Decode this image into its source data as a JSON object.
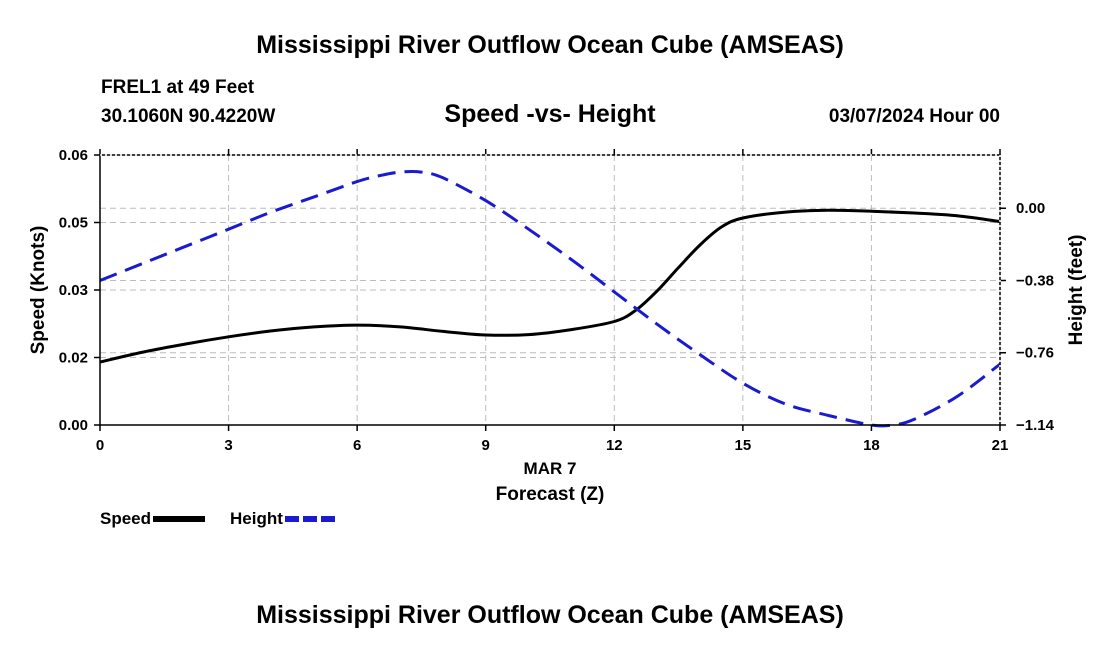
{
  "header": {
    "title": "Mississippi River Outflow Ocean Cube (AMSEAS)",
    "station_line1": "FREL1 at 49 Feet",
    "station_line2": "30.1060N  90.4220W",
    "subtitle": "Speed -vs- Height",
    "datetime": "03/07/2024 Hour 00"
  },
  "footer": {
    "title": "Mississippi River Outflow Ocean Cube (AMSEAS)"
  },
  "legend": [
    {
      "label": "Speed",
      "color": "#000000",
      "style": "solid"
    },
    {
      "label": "Height",
      "color": "#1a1ad0",
      "style": "dashed"
    }
  ],
  "chart_data": {
    "type": "line",
    "title": "Speed -vs- Height",
    "xlabel_line1": "MAR 7",
    "xlabel": "Forecast (Z)",
    "ylabel": "Speed (Knots)",
    "y2label": "Height (feet)",
    "xlim": [
      0,
      21
    ],
    "ylim": [
      0,
      0.06
    ],
    "y2lim": [
      -1.14,
      0.28
    ],
    "xticks": [
      0,
      3,
      6,
      9,
      12,
      15,
      18,
      21
    ],
    "xtick_labels": [
      "0",
      "3",
      "6",
      "9",
      "12",
      "15",
      "18",
      "21"
    ],
    "yticks": [
      0.0,
      0.02,
      0.03,
      0.05,
      0.06
    ],
    "ytick_labels": [
      "0.00",
      "0.02",
      "0.03",
      "0.05",
      "0.06"
    ],
    "ytick_positions": [
      0.0,
      0.015,
      0.03,
      0.045,
      0.06
    ],
    "y2ticks": [
      0.0,
      -0.38,
      -0.76,
      -1.14
    ],
    "y2tick_labels": [
      "0.00",
      "−0.38",
      "−0.76",
      "−1.14"
    ],
    "grid": true,
    "series": [
      {
        "name": "Speed",
        "axis": "left",
        "color": "#000000",
        "x": [
          0,
          1,
          2,
          3,
          4,
          5,
          6,
          7,
          8,
          9,
          10,
          11,
          12,
          12.5,
          13,
          13.5,
          14,
          14.5,
          15,
          16,
          17,
          18,
          19,
          20,
          21
        ],
        "y": [
          0.014,
          0.0162,
          0.018,
          0.0196,
          0.0209,
          0.0218,
          0.0222,
          0.0218,
          0.0208,
          0.02,
          0.0201,
          0.0212,
          0.023,
          0.0255,
          0.0298,
          0.035,
          0.04,
          0.044,
          0.046,
          0.0473,
          0.0477,
          0.0475,
          0.0471,
          0.0465,
          0.0452
        ]
      },
      {
        "name": "Height",
        "axis": "right",
        "color": "#1a1ad0",
        "x": [
          0,
          1,
          2,
          3,
          4,
          5,
          6,
          6.5,
          7,
          7.5,
          8,
          9,
          10,
          11,
          12,
          13,
          14,
          15,
          16,
          17,
          18,
          18.5,
          19,
          20,
          21
        ],
        "y": [
          -0.38,
          -0.29,
          -0.2,
          -0.11,
          -0.02,
          0.06,
          0.14,
          0.17,
          0.19,
          0.19,
          0.16,
          0.04,
          -0.11,
          -0.27,
          -0.44,
          -0.61,
          -0.77,
          -0.92,
          -1.03,
          -1.09,
          -1.14,
          -1.14,
          -1.11,
          -0.99,
          -0.82
        ]
      }
    ]
  }
}
